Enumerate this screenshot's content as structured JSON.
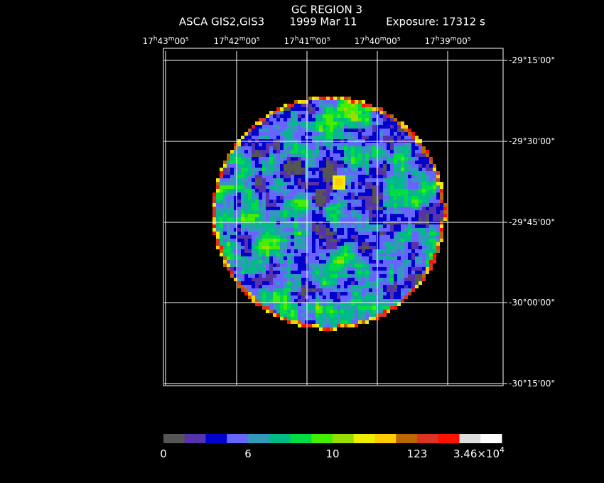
{
  "title": "GC REGION 3",
  "subtitle": {
    "instrument": "ASCA GIS2,GIS3",
    "date": "1999 Mar 11",
    "exposure": "Exposure: 17312 s"
  },
  "ra_ticks": [
    "17h43m00s",
    "17h42m00s",
    "17h41m00s",
    "17h40m00s",
    "17h39m00s"
  ],
  "dec_ticks": [
    "-29°15'00\"",
    "-29°30'00\"",
    "-29°45'00\"",
    "-30°00'00\"",
    "-30°15'00\""
  ],
  "colorbar": {
    "colors": [
      "#555555",
      "#5533aa",
      "#0000cc",
      "#6666ff",
      "#3399bb",
      "#00bb88",
      "#00dd44",
      "#44ee00",
      "#99dd00",
      "#eeee00",
      "#ffcc00",
      "#bb6600",
      "#dd3322",
      "#ff1100",
      "#dddddd",
      "#ffffff"
    ],
    "labels": [
      "0",
      "6",
      "10",
      "123",
      {
        "mantissa": "3.46×10",
        "exponent": "4"
      }
    ]
  }
}
